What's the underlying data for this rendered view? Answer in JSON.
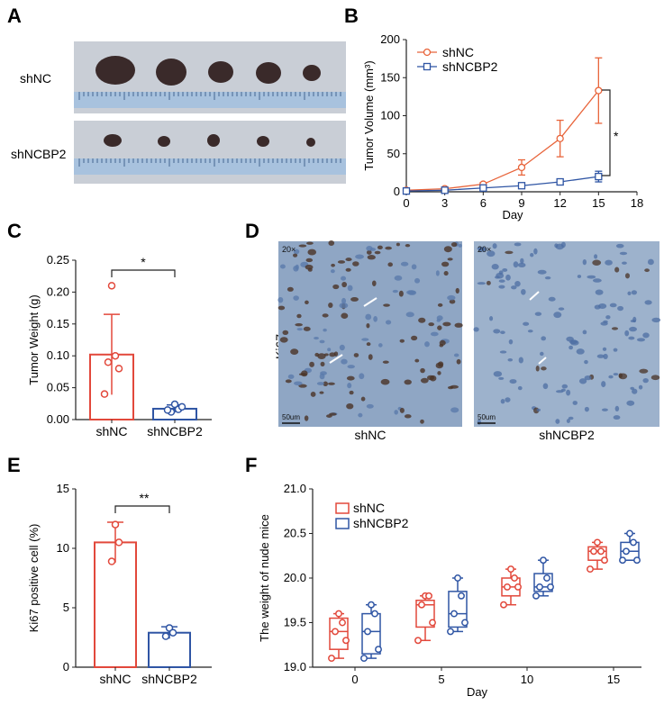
{
  "colors": {
    "red": "#e2483b",
    "blue": "#2f55a4",
    "orange": "#e8643a",
    "photo_bg": "#c9ced6",
    "tissue": "#8fa6c4"
  },
  "panels": {
    "A": "A",
    "B": "B",
    "C": "C",
    "D": "D",
    "E": "E",
    "F": "F"
  },
  "A": {
    "row1_label": "shNC",
    "row2_label": "shNCBP2"
  },
  "D": {
    "ylabel": "Ki67",
    "mag1": "20×",
    "mag2": "20×",
    "scale1": "50um",
    "scale2": "50um",
    "cap1": "shNC",
    "cap2": "shNCBP2"
  },
  "chart_data": [
    {
      "panel": "B",
      "type": "line",
      "xlabel": "Day",
      "ylabel": "Tumor Volume (mm³)",
      "xlim": [
        0,
        18
      ],
      "ylim": [
        0,
        200
      ],
      "xticks": [
        "0",
        "3",
        "6",
        "9",
        "12",
        "15",
        "18"
      ],
      "yticks": [
        "0",
        "50",
        "100",
        "150",
        "200"
      ],
      "x": [
        0,
        3,
        6,
        9,
        12,
        15
      ],
      "series": [
        {
          "name": "shNC",
          "values": [
            2,
            4,
            10,
            32,
            70,
            133
          ],
          "err": [
            1,
            1,
            2,
            10,
            24,
            43
          ]
        },
        {
          "name": "shNCBP2",
          "values": [
            1,
            2,
            5,
            8,
            13,
            20
          ],
          "err": [
            0.5,
            1,
            1,
            2,
            4,
            7
          ]
        }
      ],
      "annotation": "*",
      "legend": "top-left"
    },
    {
      "panel": "C",
      "type": "bar",
      "ylabel": "Tumor Weight (g)",
      "ylim": [
        0,
        0.25
      ],
      "yticks": [
        "0.00",
        "0.05",
        "0.10",
        "0.15",
        "0.20",
        "0.25"
      ],
      "categories": [
        "shNC",
        "shNCBP2"
      ],
      "values": [
        0.102,
        0.017
      ],
      "err": [
        0.063,
        0.006
      ],
      "points": [
        [
          0.21,
          0.1,
          0.09,
          0.08,
          0.04
        ],
        [
          0.024,
          0.016,
          0.012,
          0.02,
          0.015
        ]
      ],
      "annotation": "*"
    },
    {
      "panel": "E",
      "type": "bar",
      "ylabel": "Ki67 positive cell (%)",
      "ylim": [
        0,
        15
      ],
      "yticks": [
        "0",
        "5",
        "10",
        "15"
      ],
      "categories": [
        "shNC",
        "shNCBP2"
      ],
      "values": [
        10.5,
        2.9
      ],
      "err": [
        1.7,
        0.5
      ],
      "points": [
        [
          12,
          10.5,
          8.9
        ],
        [
          3.3,
          2.9,
          2.6
        ]
      ],
      "annotation": "**"
    },
    {
      "panel": "F",
      "type": "box",
      "xlabel": "Day",
      "ylabel": "The weight of nude mice",
      "ylim": [
        19.0,
        21.0
      ],
      "yticks": [
        "19.0",
        "19.5",
        "20.0",
        "20.5",
        "21.0"
      ],
      "xticks": [
        "0",
        "5",
        "10",
        "15"
      ],
      "series": [
        {
          "name": "shNC",
          "boxes": [
            {
              "min": 19.1,
              "q1": 19.2,
              "med": 19.4,
              "q3": 19.55,
              "max": 19.6,
              "points": [
                19.6,
                19.5,
                19.4,
                19.3,
                19.1
              ]
            },
            {
              "min": 19.3,
              "q1": 19.45,
              "med": 19.7,
              "q3": 19.75,
              "max": 19.8,
              "points": [
                19.8,
                19.8,
                19.7,
                19.5,
                19.3
              ]
            },
            {
              "min": 19.7,
              "q1": 19.8,
              "med": 19.9,
              "q3": 20.0,
              "max": 20.1,
              "points": [
                20.1,
                20.0,
                19.9,
                19.9,
                19.7
              ]
            },
            {
              "min": 20.1,
              "q1": 20.2,
              "med": 20.3,
              "q3": 20.35,
              "max": 20.4,
              "points": [
                20.4,
                20.3,
                20.3,
                20.2,
                20.1
              ]
            }
          ]
        },
        {
          "name": "shNCBP2",
          "boxes": [
            {
              "min": 19.1,
              "q1": 19.15,
              "med": 19.4,
              "q3": 19.6,
              "max": 19.7,
              "points": [
                19.7,
                19.6,
                19.4,
                19.2,
                19.1
              ]
            },
            {
              "min": 19.4,
              "q1": 19.45,
              "med": 19.6,
              "q3": 19.85,
              "max": 20.0,
              "points": [
                20.0,
                19.8,
                19.6,
                19.5,
                19.4
              ]
            },
            {
              "min": 19.8,
              "q1": 19.85,
              "med": 19.9,
              "q3": 20.05,
              "max": 20.2,
              "points": [
                20.2,
                20.0,
                19.9,
                19.9,
                19.8
              ]
            },
            {
              "min": 20.2,
              "q1": 20.2,
              "med": 20.3,
              "q3": 20.4,
              "max": 20.5,
              "points": [
                20.5,
                20.4,
                20.3,
                20.2,
                20.2
              ]
            }
          ]
        }
      ],
      "legend": "top-left"
    }
  ]
}
